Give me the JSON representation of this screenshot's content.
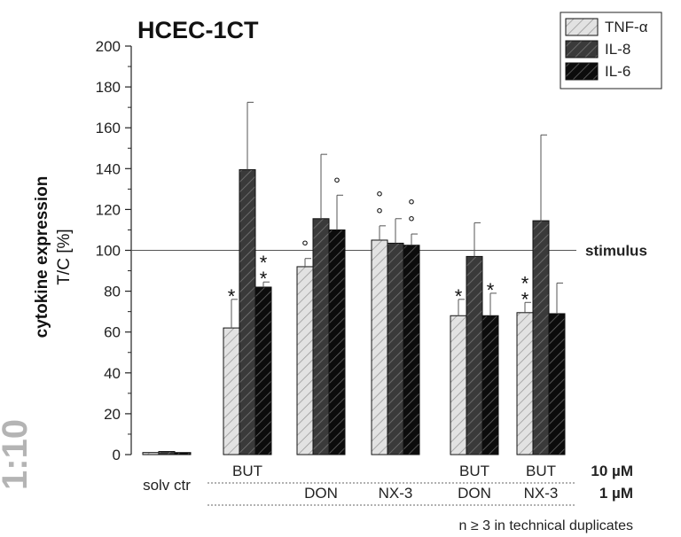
{
  "chart_data": {
    "type": "bar",
    "title": "HCEC-1CT",
    "side_label": "1:10",
    "ylabel_line1": "cytokine expression",
    "ylabel_line2": "T/C [%]",
    "ylim": [
      0,
      200
    ],
    "yticks": [
      0,
      20,
      40,
      60,
      80,
      100,
      120,
      140,
      160,
      180,
      200
    ],
    "reference_line": {
      "value": 100,
      "label": "stimulus"
    },
    "groups": [
      {
        "row1": "solv ctr",
        "row2": ""
      },
      {
        "row1": "BUT",
        "row2": ""
      },
      {
        "row1": "",
        "row2": "DON"
      },
      {
        "row1": "",
        "row2": "NX-3"
      },
      {
        "row1": "BUT",
        "row2": "DON"
      },
      {
        "row1": "BUT",
        "row2": "NX-3"
      }
    ],
    "concentration_labels": [
      "10 µM",
      "1 µM"
    ],
    "series": [
      {
        "name": "TNF-α",
        "color": "#e2e2e2",
        "stripe": "#9a9a9a",
        "values": [
          1,
          62,
          92,
          105,
          68,
          69.5
        ],
        "errors": [
          0,
          14,
          4,
          7,
          8,
          5
        ],
        "marks": [
          "",
          "*",
          "°",
          "°°",
          "*",
          "**"
        ]
      },
      {
        "name": "IL-8",
        "color": "#3a3a3a",
        "stripe": "#777777",
        "values": [
          1.5,
          139.5,
          115.5,
          103.5,
          97,
          114.5
        ],
        "errors": [
          0,
          33,
          31.5,
          12,
          16.5,
          42
        ],
        "marks": [
          "",
          "",
          "",
          "",
          "",
          ""
        ]
      },
      {
        "name": "IL-6",
        "color": "#0c0c0c",
        "stripe": "#666666",
        "values": [
          1,
          82,
          110,
          102.5,
          68,
          69
        ],
        "errors": [
          0,
          2.5,
          17,
          5.5,
          11,
          15
        ],
        "marks": [
          "",
          "**",
          "°",
          "°°",
          "*",
          ""
        ]
      }
    ],
    "footnote": "n ≥ 3 in technical duplicates"
  }
}
